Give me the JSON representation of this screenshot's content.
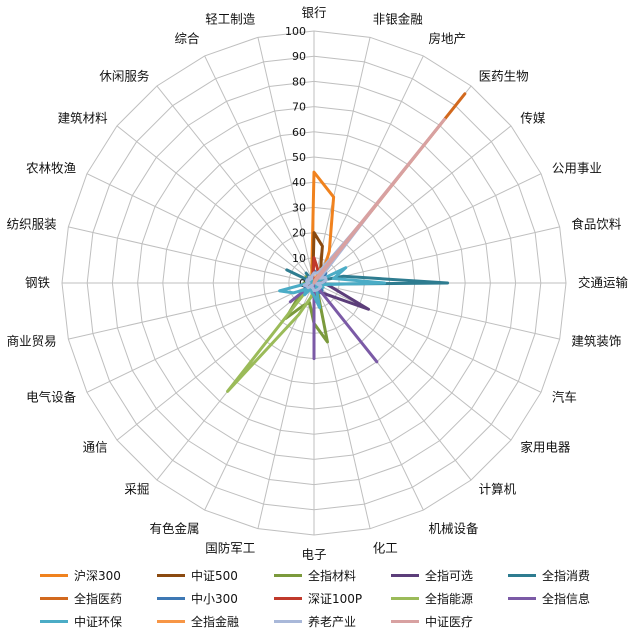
{
  "chart_data": {
    "type": "radar",
    "title": "",
    "categories": [
      "银行",
      "非银金融",
      "房地产",
      "医药生物",
      "传媒",
      "公用事业",
      "食品饮料",
      "交通运输",
      "建筑装饰",
      "汽车",
      "家用电器",
      "计算机",
      "机械设备",
      "化工",
      "电子",
      "国防军工",
      "有色金属",
      "采掘",
      "通信",
      "电气设备",
      "商业贸易",
      "钢铁",
      "纺织服装",
      "农林牧渔",
      "建筑材料",
      "休闲服务",
      "综合",
      "轻工制造"
    ],
    "ticks": [
      0,
      10,
      20,
      30,
      40,
      50,
      60,
      70,
      80,
      90,
      100
    ],
    "rlim": [
      0,
      100
    ],
    "grid": true,
    "legend_position": "bottom",
    "series": [
      {
        "name": "沪深300",
        "color": "#F0821E",
        "values": [
          44,
          35,
          14,
          6,
          2,
          1,
          1,
          1,
          1,
          0,
          1,
          0,
          1,
          0,
          0,
          0,
          0,
          0,
          0,
          0,
          0,
          0,
          0,
          0,
          1,
          0,
          1,
          4
        ]
      },
      {
        "name": "中证500",
        "color": "#8B4A10",
        "values": [
          20,
          15,
          6,
          4,
          2,
          1,
          1,
          1,
          1,
          1,
          1,
          1,
          1,
          1,
          1,
          1,
          1,
          0,
          1,
          1,
          0,
          1,
          0,
          1,
          1,
          1,
          1,
          2
        ]
      },
      {
        "name": "全指材料",
        "color": "#7B9A3C",
        "values": [
          1,
          0,
          0,
          0,
          0,
          0,
          0,
          0,
          0,
          1,
          1,
          2,
          3,
          24,
          16,
          8,
          10,
          18,
          7,
          3,
          2,
          4,
          0,
          2,
          4,
          0,
          1,
          1
        ]
      },
      {
        "name": "全指可选",
        "color": "#5C3E7A",
        "values": [
          1,
          1,
          1,
          1,
          1,
          1,
          2,
          4,
          7,
          24,
          8,
          5,
          3,
          4,
          5,
          2,
          1,
          0,
          0,
          1,
          3,
          0,
          3,
          1,
          0,
          2,
          1,
          2
        ]
      },
      {
        "name": "全指消费",
        "color": "#2E7C90",
        "values": [
          0,
          0,
          0,
          0,
          0,
          2,
          12,
          53,
          2,
          1,
          0,
          1,
          0,
          0,
          0,
          0,
          0,
          0,
          0,
          0,
          0,
          0,
          0,
          12,
          0,
          5,
          0,
          0
        ]
      },
      {
        "name": "全指医药",
        "color": "#D2691E",
        "values": [
          0,
          0,
          0,
          96,
          0,
          0,
          0,
          0,
          0,
          0,
          0,
          0,
          0,
          0,
          0,
          0,
          0,
          0,
          0,
          0,
          0,
          0,
          0,
          0,
          0,
          0,
          0,
          0
        ]
      },
      {
        "name": "中小300",
        "color": "#3E78B4",
        "values": [
          5,
          4,
          4,
          4,
          6,
          3,
          3,
          4,
          3,
          3,
          4,
          5,
          4,
          4,
          6,
          3,
          3,
          2,
          4,
          4,
          3,
          2,
          3,
          3,
          3,
          3,
          2,
          3
        ]
      },
      {
        "name": "深证100P",
        "color": "#C0392B",
        "values": [
          10,
          6,
          4,
          6,
          4,
          2,
          3,
          2,
          2,
          2,
          3,
          3,
          2,
          2,
          6,
          2,
          2,
          1,
          2,
          2,
          2,
          1,
          1,
          2,
          1,
          1,
          1,
          2
        ]
      },
      {
        "name": "全指能源",
        "color": "#9BBB59",
        "values": [
          0,
          0,
          0,
          0,
          0,
          0,
          0,
          0,
          0,
          0,
          0,
          0,
          0,
          1,
          3,
          6,
          14,
          55,
          2,
          1,
          1,
          2,
          0,
          0,
          0,
          0,
          0,
          0
        ]
      },
      {
        "name": "全指信息",
        "color": "#7B5AA6",
        "values": [
          0,
          0,
          0,
          0,
          3,
          0,
          0,
          0,
          0,
          0,
          0,
          40,
          0,
          0,
          30,
          0,
          0,
          0,
          12,
          0,
          0,
          0,
          0,
          0,
          0,
          0,
          0,
          0
        ]
      },
      {
        "name": "中证环保",
        "color": "#4BACC6",
        "values": [
          0,
          0,
          0,
          0,
          0,
          14,
          8,
          28,
          3,
          4,
          1,
          3,
          2,
          10,
          5,
          4,
          2,
          6,
          4,
          9,
          14,
          2,
          0,
          3,
          2,
          1,
          1,
          1
        ]
      },
      {
        "name": "全指金融",
        "color": "#F79646",
        "values": [
          0,
          1,
          6,
          2,
          0,
          0,
          0,
          0,
          0,
          0,
          0,
          0,
          0,
          0,
          0,
          0,
          0,
          0,
          0,
          0,
          0,
          0,
          0,
          0,
          0,
          0,
          0,
          0
        ]
      },
      {
        "name": "养老产业",
        "color": "#A9B8D9",
        "values": [
          4,
          4,
          5,
          36,
          3,
          5,
          5,
          3,
          1,
          3,
          3,
          3,
          3,
          3,
          3,
          2,
          2,
          1,
          3,
          3,
          4,
          2,
          3,
          3,
          2,
          3,
          2,
          3
        ]
      },
      {
        "name": "中证医疗",
        "color": "#D8A1A1",
        "values": [
          0,
          0,
          2,
          83,
          0,
          0,
          0,
          0,
          0,
          0,
          0,
          0,
          0,
          0,
          0,
          0,
          0,
          0,
          0,
          0,
          0,
          0,
          0,
          0,
          0,
          0,
          0,
          0
        ]
      }
    ]
  }
}
